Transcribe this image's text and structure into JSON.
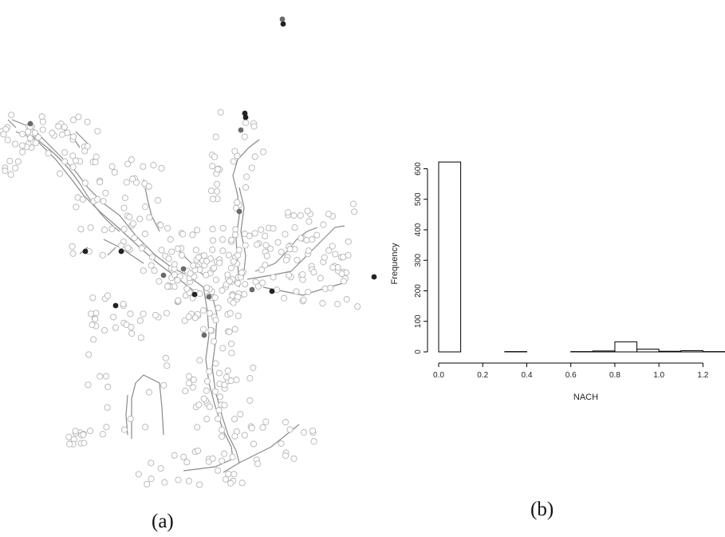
{
  "panel_a": {
    "caption": "(a)"
  },
  "panel_b": {
    "caption": "(b)"
  },
  "chart_data": {
    "type": "histogram",
    "title": "",
    "xlabel": "NACH",
    "ylabel": "Frequency",
    "bin_width": 0.1,
    "bins": [
      {
        "x0": 0.0,
        "x1": 0.1,
        "count": 622
      },
      {
        "x0": 0.1,
        "x1": 0.2,
        "count": 0
      },
      {
        "x0": 0.2,
        "x1": 0.3,
        "count": 0
      },
      {
        "x0": 0.3,
        "x1": 0.4,
        "count": 1
      },
      {
        "x0": 0.4,
        "x1": 0.5,
        "count": 0
      },
      {
        "x0": 0.5,
        "x1": 0.6,
        "count": 0
      },
      {
        "x0": 0.6,
        "x1": 0.7,
        "count": 1
      },
      {
        "x0": 0.7,
        "x1": 0.8,
        "count": 3
      },
      {
        "x0": 0.8,
        "x1": 0.9,
        "count": 33
      },
      {
        "x0": 0.9,
        "x1": 1.0,
        "count": 9
      },
      {
        "x0": 1.0,
        "x1": 1.1,
        "count": 2
      },
      {
        "x0": 1.1,
        "x1": 1.2,
        "count": 4
      },
      {
        "x0": 1.2,
        "x1": 1.3,
        "count": 1
      }
    ],
    "x_ticks": [
      "0.0",
      "0.2",
      "0.4",
      "0.6",
      "0.8",
      "1.0",
      "1.2"
    ],
    "x_tick_values": [
      0.0,
      0.2,
      0.4,
      0.6,
      0.8,
      1.0,
      1.2
    ],
    "y_ticks": [
      "0",
      "100",
      "200",
      "300",
      "400",
      "500",
      "600"
    ],
    "y_tick_values": [
      0,
      100,
      200,
      300,
      400,
      500,
      600
    ],
    "xlim": [
      0.0,
      1.3
    ],
    "ylim": [
      0,
      630
    ]
  },
  "colors": {
    "street_line": "#8a8a8a",
    "node_outline": "#b5b5b5",
    "node_dark": "#222222",
    "node_mid": "#6a6a6a",
    "bar_stroke": "#000000"
  }
}
